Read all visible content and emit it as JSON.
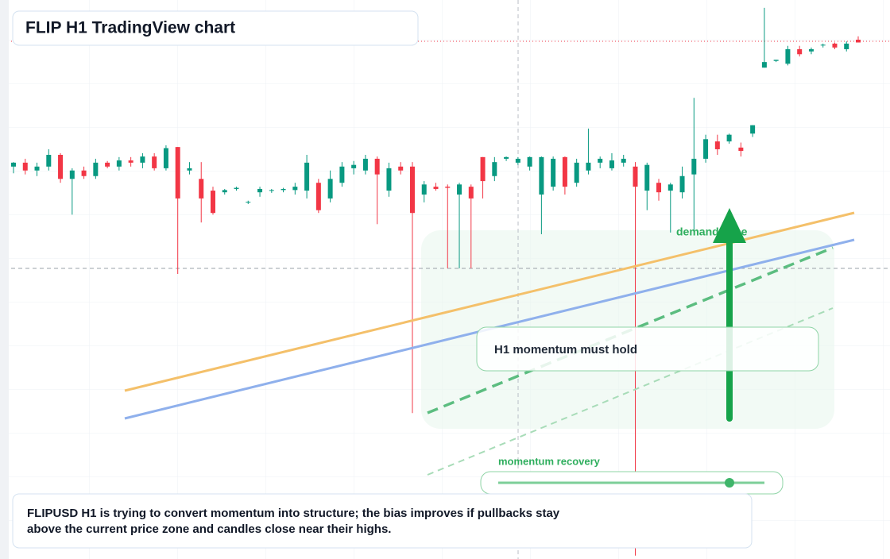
{
  "chart_data": {
    "type": "candlestick",
    "title": "FLIP H1 TradingView chart",
    "up_color": "#089981",
    "down_color": "#f23645",
    "ylim": [
      0,
      100
    ],
    "ohlc": [
      [
        70.2,
        71.0,
        69.0,
        70.9
      ],
      [
        70.9,
        71.6,
        68.8,
        69.5
      ],
      [
        69.5,
        70.9,
        68.5,
        70.2
      ],
      [
        70.2,
        73.3,
        69.5,
        72.3
      ],
      [
        72.3,
        72.6,
        67.3,
        68.0
      ],
      [
        68.0,
        69.9,
        61.6,
        69.5
      ],
      [
        69.5,
        70.2,
        68.0,
        68.5
      ],
      [
        68.5,
        71.6,
        68.0,
        70.9
      ],
      [
        70.9,
        71.2,
        69.9,
        70.2
      ],
      [
        70.2,
        71.9,
        69.5,
        71.3
      ],
      [
        71.3,
        71.9,
        70.2,
        70.9
      ],
      [
        70.9,
        72.6,
        69.9,
        72.0
      ],
      [
        72.0,
        72.6,
        69.5,
        69.9
      ],
      [
        69.9,
        74.0,
        69.5,
        73.5
      ],
      [
        73.7,
        73.7,
        51.0,
        64.5
      ],
      [
        69.5,
        71.0,
        68.8,
        69.9
      ],
      [
        68.0,
        71.0,
        60.2,
        64.5
      ],
      [
        65.9,
        66.6,
        61.6,
        61.9
      ],
      [
        65.6,
        66.2,
        65.2,
        66.0
      ],
      [
        66.2,
        66.6,
        65.9,
        66.4
      ],
      [
        63.8,
        64.1,
        63.5,
        63.9
      ],
      [
        65.6,
        66.6,
        64.8,
        66.2
      ],
      [
        65.9,
        66.2,
        65.5,
        66.0
      ],
      [
        66.0,
        66.4,
        65.6,
        66.2
      ],
      [
        66.0,
        67.3,
        65.2,
        66.6
      ],
      [
        65.9,
        72.3,
        64.5,
        70.9
      ],
      [
        67.3,
        68.0,
        61.9,
        62.4
      ],
      [
        64.5,
        69.5,
        63.8,
        68.0
      ],
      [
        67.3,
        71.0,
        66.6,
        70.2
      ],
      [
        69.9,
        71.2,
        68.8,
        70.5
      ],
      [
        69.5,
        72.3,
        68.8,
        71.6
      ],
      [
        71.6,
        72.0,
        59.9,
        68.8
      ],
      [
        65.9,
        70.9,
        64.8,
        69.9
      ],
      [
        70.2,
        71.0,
        68.8,
        69.5
      ],
      [
        70.2,
        71.0,
        26.1,
        61.9
      ],
      [
        65.2,
        67.6,
        63.8,
        67.0
      ],
      [
        66.6,
        67.3,
        65.9,
        66.2
      ],
      [
        66.6,
        67.0,
        52.0,
        66.4
      ],
      [
        65.2,
        67.3,
        52.0,
        67.0
      ],
      [
        66.6,
        67.0,
        52.0,
        64.5
      ],
      [
        71.9,
        71.9,
        64.5,
        67.6
      ],
      [
        68.5,
        71.9,
        67.6,
        71.0
      ],
      [
        71.6,
        72.0,
        71.2,
        71.9
      ],
      [
        70.9,
        71.9,
        70.5,
        71.6
      ],
      [
        70.2,
        72.0,
        69.5,
        71.9
      ],
      [
        65.2,
        72.0,
        58.1,
        71.9
      ],
      [
        66.6,
        72.0,
        65.9,
        71.6
      ],
      [
        71.9,
        72.0,
        65.2,
        66.6
      ],
      [
        67.3,
        71.6,
        66.6,
        70.9
      ],
      [
        69.5,
        77.0,
        68.8,
        70.9
      ],
      [
        70.9,
        72.0,
        69.9,
        71.6
      ],
      [
        69.9,
        72.6,
        69.5,
        71.3
      ],
      [
        70.9,
        72.3,
        70.2,
        71.6
      ],
      [
        70.2,
        71.0,
        0.6,
        66.6
      ],
      [
        65.9,
        70.9,
        62.4,
        70.5
      ],
      [
        67.3,
        68.0,
        64.1,
        65.6
      ],
      [
        65.9,
        67.3,
        58.4,
        67.0
      ],
      [
        65.6,
        70.2,
        64.5,
        68.5
      ],
      [
        68.8,
        82.5,
        58.8,
        71.6
      ],
      [
        71.6,
        75.9,
        70.9,
        75.1
      ],
      [
        74.7,
        75.9,
        72.3,
        73.3
      ],
      [
        74.7,
        76.1,
        74.3,
        75.9
      ],
      [
        73.6,
        74.5,
        72.0,
        73.0
      ],
      [
        76.1,
        77.6,
        75.5,
        77.6
      ],
      [
        87.9,
        98.6,
        87.9,
        88.9
      ],
      [
        89.1,
        89.3,
        88.9,
        89.3
      ],
      [
        88.6,
        91.8,
        88.3,
        91.2
      ],
      [
        91.2,
        91.8,
        89.9,
        90.3
      ],
      [
        90.8,
        91.5,
        90.3,
        91.2
      ],
      [
        91.9,
        92.2,
        91.5,
        92.0
      ],
      [
        92.2,
        92.4,
        91.2,
        91.5
      ],
      [
        91.2,
        92.6,
        90.8,
        92.2
      ],
      [
        92.9,
        93.5,
        92.4,
        92.4
      ]
    ],
    "annotations": [
      "demand zone",
      "H1 momentum must hold",
      "momentum recovery"
    ],
    "note": "FLIPUSD H1 is trying to convert momentum into structure; the bias improves if pullbacks stay above the current price zone and candles close near their highs."
  }
}
